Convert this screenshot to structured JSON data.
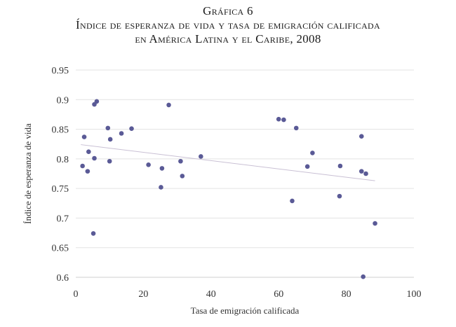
{
  "title": {
    "line1": "Gráfica 6",
    "line2": "Índice de esperanza de vida y tasa de emigración calificada",
    "line3": "en América Latina y el Caribe, 2008"
  },
  "colors": {
    "points": "#5a5a96",
    "trendline": "#c9c0d4"
  },
  "chart_data": {
    "type": "scatter",
    "title": "Gráfica 6 Índice de esperanza de vida y tasa de emigración calificada en América Latina y el Caribe, 2008",
    "xlabel": "Tasa de emigración calificada",
    "ylabel": "Índice de esperanza de vida",
    "xlim": [
      0,
      100
    ],
    "ylim": [
      0.6,
      0.95
    ],
    "xticks": [
      "0",
      "20",
      "40",
      "60",
      "80",
      "100"
    ],
    "yticks": [
      "0.6",
      "0.65",
      "0.7",
      "0.75",
      "0.8",
      "0.85",
      "0.9",
      "0.95"
    ],
    "grid": "horizontal",
    "trendline": [
      [
        1.5,
        0.824
      ],
      [
        88.5,
        0.763
      ]
    ],
    "points": [
      [
        2,
        0.788
      ],
      [
        2.5,
        0.837
      ],
      [
        3.5,
        0.779
      ],
      [
        3.8,
        0.812
      ],
      [
        5.2,
        0.674
      ],
      [
        5.5,
        0.801
      ],
      [
        5.5,
        0.892
      ],
      [
        6.2,
        0.897
      ],
      [
        9.5,
        0.852
      ],
      [
        10,
        0.796
      ],
      [
        10.2,
        0.833
      ],
      [
        13.5,
        0.843
      ],
      [
        16.5,
        0.851
      ],
      [
        21.5,
        0.79
      ],
      [
        25.2,
        0.752
      ],
      [
        25.5,
        0.784
      ],
      [
        27.5,
        0.891
      ],
      [
        31,
        0.796
      ],
      [
        31.5,
        0.771
      ],
      [
        37,
        0.804
      ],
      [
        60,
        0.867
      ],
      [
        61.5,
        0.866
      ],
      [
        64,
        0.729
      ],
      [
        65.2,
        0.852
      ],
      [
        68.5,
        0.787
      ],
      [
        70,
        0.81
      ],
      [
        78,
        0.737
      ],
      [
        78.2,
        0.788
      ],
      [
        84.5,
        0.838
      ],
      [
        84.5,
        0.779
      ],
      [
        85,
        0.601
      ],
      [
        85.8,
        0.775
      ],
      [
        88.5,
        0.691
      ]
    ]
  }
}
